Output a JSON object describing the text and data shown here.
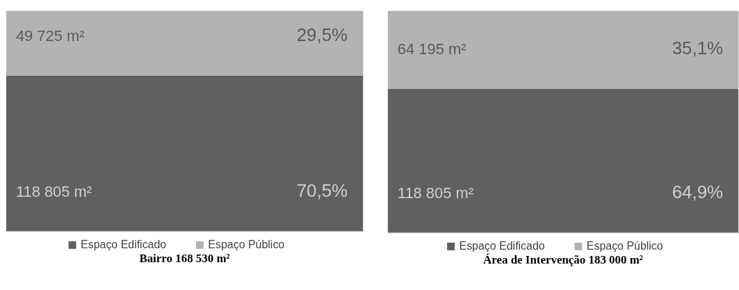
{
  "chart_data": [
    {
      "type": "bar",
      "title": "Bairro 168 530 m²",
      "stacked": true,
      "categories": [
        null
      ],
      "ylim": [
        0,
        100
      ],
      "tick_labels": false,
      "grid": false,
      "legend": "bottom",
      "series": [
        {
          "name": "Espaço Edificado",
          "color": "#606060",
          "values": [
            70.5
          ],
          "value_labels": [
            "70,5%"
          ]
        },
        {
          "name": "Espaço Público",
          "color": "#b3b3b3",
          "values": [
            29.5
          ],
          "value_labels": [
            "29,5%"
          ]
        }
      ],
      "annotations": [
        "49 725 m²",
        "118 805 m²"
      ]
    },
    {
      "type": "bar",
      "title": "Área de Intervenção 183 000 m²",
      "stacked": true,
      "categories": [
        null
      ],
      "ylim": [
        0,
        100
      ],
      "tick_labels": false,
      "grid": false,
      "legend": "bottom",
      "series": [
        {
          "name": "Espaço Edificado",
          "color": "#606060",
          "values": [
            64.9
          ],
          "value_labels": [
            "64,9%"
          ]
        },
        {
          "name": "Espaço Público",
          "color": "#b3b3b3",
          "values": [
            35.1
          ],
          "value_labels": [
            "35,1%"
          ]
        }
      ],
      "annotations": [
        "64 195 m²",
        "118 805 m²"
      ]
    }
  ]
}
